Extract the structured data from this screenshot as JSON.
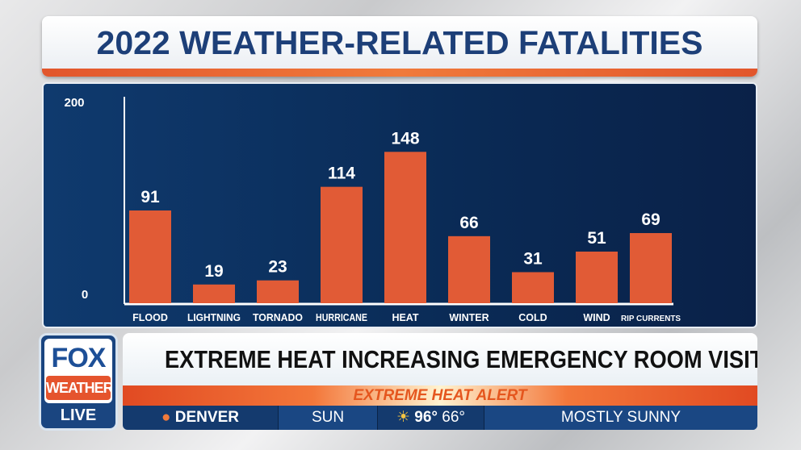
{
  "chart_data": {
    "type": "bar",
    "title": "2022 WEATHER-RELATED FATALITIES",
    "categories": [
      "FLOOD",
      "LIGHTNING",
      "TORNADO",
      "HURRICANE",
      "HEAT",
      "WINTER",
      "COLD",
      "WIND",
      "RIP CURRENTS"
    ],
    "values": [
      91,
      19,
      23,
      114,
      148,
      66,
      31,
      51,
      69
    ],
    "ylim": [
      0,
      200
    ],
    "yticks": [
      "0",
      "200"
    ],
    "xlabel": "",
    "ylabel": "",
    "grid": false,
    "bar_color": "#e15b36",
    "background_color": "#0d3366"
  },
  "branding": {
    "fox": "FOX",
    "weather": "WEATHER",
    "live": "LIVE",
    "accent": "#e5542d",
    "brand_blue": "#1d4f97"
  },
  "ticker": {
    "headline": "EXTREME HEAT INCREASING EMERGENCY ROOM VISITS",
    "alert": "EXTREME HEAT ALERT",
    "location": "DENVER",
    "day": "SUN",
    "high": "96°",
    "low": "66°",
    "condition": "MOSTLY SUNNY",
    "location_icon": "map-pin-icon",
    "weather_icon": "partly-sunny-icon"
  }
}
